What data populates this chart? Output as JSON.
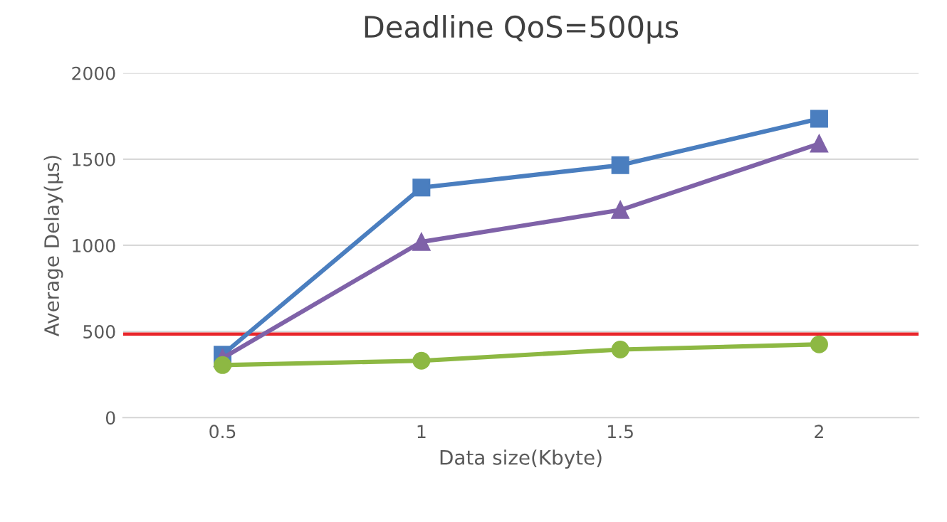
{
  "chart_data": {
    "type": "line",
    "title": "Deadline QoS=500μs",
    "xlabel": "Data size(Kbyte)",
    "ylabel": "Average Delay(μs)",
    "categories": [
      "0.5",
      "1",
      "1.5",
      "2"
    ],
    "series": [
      {
        "color": "#4a7ebf",
        "marker": "square",
        "values": [
          365,
          1335,
          1465,
          1735
        ]
      },
      {
        "color": "#7f62a8",
        "marker": "triangle",
        "values": [
          345,
          1020,
          1205,
          1590
        ]
      },
      {
        "color": "#8db843",
        "marker": "circle",
        "values": [
          305,
          330,
          395,
          425
        ]
      }
    ],
    "ylim": [
      0,
      2000
    ],
    "yticks": [
      0,
      500,
      1000,
      1500,
      2000
    ],
    "grid": "y",
    "legend": false,
    "ref_lines": [
      {
        "axis": "y",
        "value": 485,
        "color": "#e8262b"
      }
    ]
  }
}
